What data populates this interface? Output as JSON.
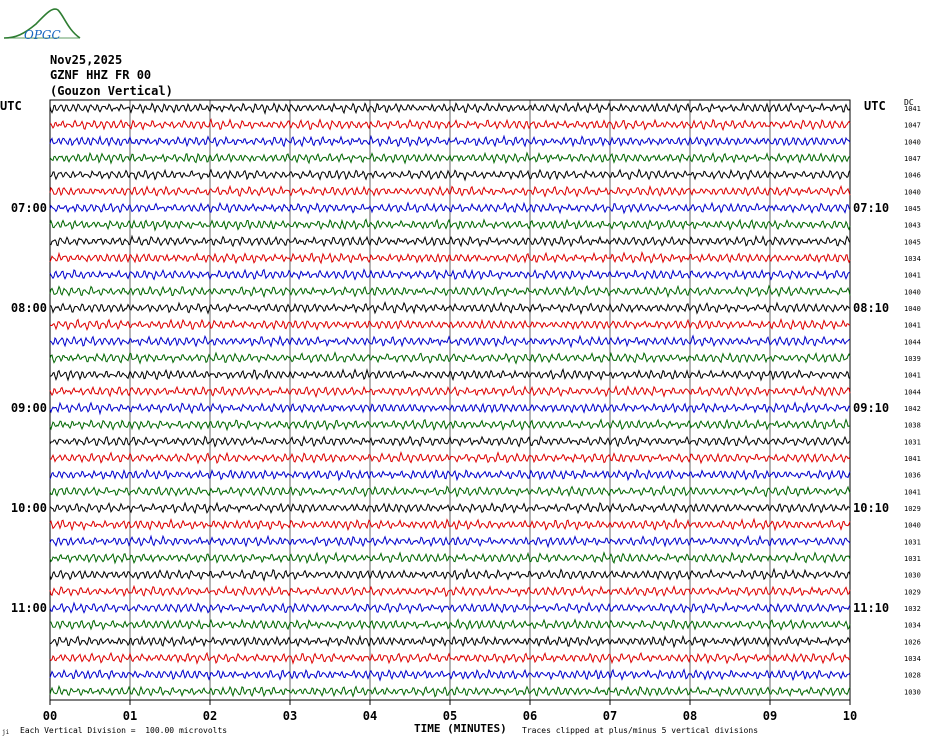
{
  "header": {
    "logo_text": "OPGC",
    "date": "Nov25,2025",
    "station": "GZNF HHZ FR 00",
    "channel_desc": "(Gouzon Vertical)",
    "utc_left": "UTC",
    "utc_right": "UTC",
    "right_col_label": "DC"
  },
  "footer": {
    "mark": "ji",
    "division_note": "Each Vertical Division =  100.00 microvolts",
    "clip_note": "Traces clipped at plus/minus 5 vertical divisions"
  },
  "colors": {
    "trace_cycle": [
      "#000000",
      "#dd0000",
      "#0000cc",
      "#006600"
    ],
    "grid": "#000000",
    "logo": "#2e7d32",
    "logo_text": "#1565c0"
  },
  "chart_data": {
    "type": "line",
    "title": "",
    "xlabel": "TIME (MINUTES)",
    "ylabel": "",
    "xlim": [
      0,
      10
    ],
    "x_ticks": [
      "00",
      "01",
      "02",
      "03",
      "04",
      "05",
      "06",
      "07",
      "08",
      "09",
      "10"
    ],
    "row_minutes": 10,
    "hour_labels_left": [
      {
        "row": 6,
        "label": "07:00"
      },
      {
        "row": 12,
        "label": "08:00"
      },
      {
        "row": 18,
        "label": "09:00"
      },
      {
        "row": 24,
        "label": "10:00"
      },
      {
        "row": 30,
        "label": "11:00"
      }
    ],
    "hour_labels_right": [
      {
        "row": 6,
        "label": "07:10"
      },
      {
        "row": 12,
        "label": "08:10"
      },
      {
        "row": 18,
        "label": "09:10"
      },
      {
        "row": 24,
        "label": "10:10"
      },
      {
        "row": 30,
        "label": "11:10"
      }
    ],
    "dc_offsets": [
      1041,
      1047,
      1040,
      1047,
      1046,
      1040,
      1045,
      1043,
      1045,
      1034,
      1041,
      1040,
      1040,
      1041,
      1044,
      1039,
      1041,
      1044,
      1042,
      1038,
      1031,
      1041,
      1036,
      1041,
      1029,
      1040,
      1031,
      1031,
      1030,
      1029,
      1032,
      1034,
      1026,
      1034,
      1028,
      1030
    ],
    "amplitude_scale_microvolts_per_division": 100.0,
    "clip_divisions": 5
  }
}
